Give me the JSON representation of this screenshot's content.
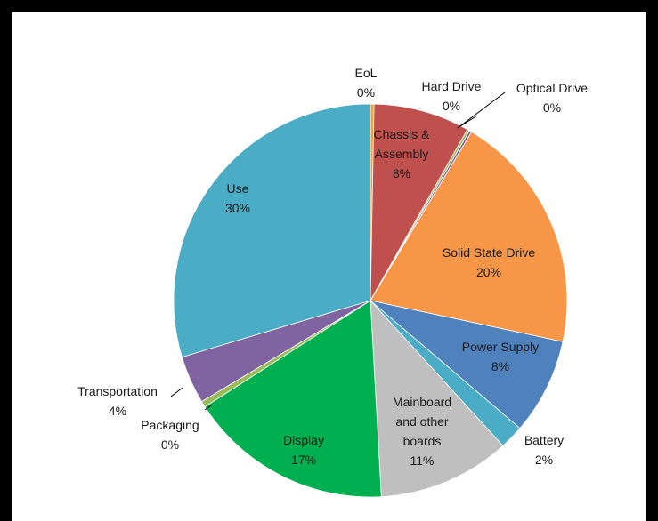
{
  "chart_data": {
    "type": "pie",
    "start_angle_deg": 0,
    "direction": "clockwise",
    "slices": [
      {
        "name": "EoL",
        "value": 0.3,
        "pct_label": "0%",
        "color": "#f0a23c"
      },
      {
        "name": "Chassis & Assembly",
        "lines": [
          "Chassis &",
          "Assembly"
        ],
        "value": 8,
        "pct_label": "8%",
        "color": "#c0504d"
      },
      {
        "name": "Hard Drive",
        "value": 0.2,
        "pct_label": "0%",
        "color": "#9bbb59"
      },
      {
        "name": "Optical Drive",
        "value": 0.2,
        "pct_label": "0%",
        "color": "#8064a2"
      },
      {
        "name": "Solid State Drive",
        "value": 20,
        "pct_label": "20%",
        "color": "#f79646"
      },
      {
        "name": "Power Supply",
        "value": 8,
        "pct_label": "8%",
        "color": "#4f81bd"
      },
      {
        "name": "Battery",
        "value": 2,
        "pct_label": "2%",
        "color": "#4bacc6"
      },
      {
        "name": "Mainboard and other boards",
        "lines": [
          "Mainboard",
          "and other",
          "boards"
        ],
        "value": 11,
        "pct_label": "11%",
        "color": "#bfbfbf"
      },
      {
        "name": "Display",
        "value": 17,
        "pct_label": "17%",
        "color": "#00b050"
      },
      {
        "name": "Packaging",
        "value": 0.5,
        "pct_label": "0%",
        "color": "#9bbb59"
      },
      {
        "name": "Transportation",
        "value": 4,
        "pct_label": "4%",
        "color": "#8064a2"
      },
      {
        "name": "Use",
        "value": 30,
        "pct_label": "30%",
        "color": "#4bacc6"
      }
    ]
  }
}
